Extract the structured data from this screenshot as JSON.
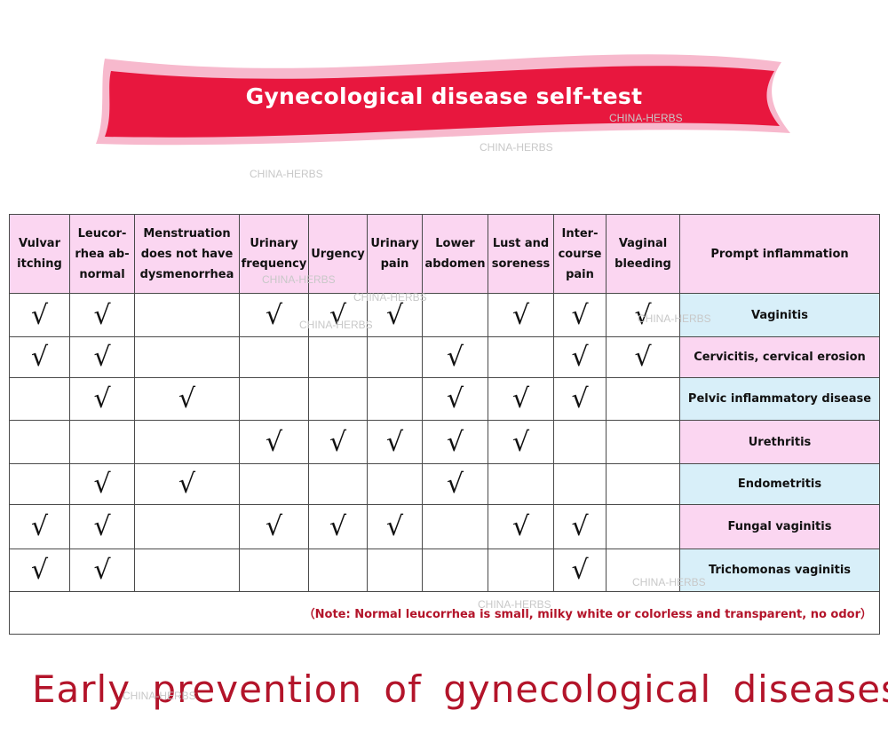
{
  "banner": {
    "title": "Gynecological disease self-test",
    "color": "#e8173e"
  },
  "watermark": "CHINA-HERBS",
  "check_mark": "√",
  "table": {
    "headers": [
      "Vulvar itching",
      "Leucor-rhea ab-normal",
      "Menstruation does not have dysmenorrhea",
      "Urinary frequency",
      "Urgency",
      "Urinary pain",
      "Lower abdomen",
      "Lust and soreness",
      "Inter-course pain",
      "Vaginal bleeding",
      "Prompt inflammation"
    ],
    "rows": [
      {
        "disease": "Vaginitis",
        "checks": [
          1,
          1,
          0,
          1,
          1,
          1,
          0,
          1,
          1,
          1
        ],
        "color": "blue"
      },
      {
        "disease": "Cervicitis, cervical erosion",
        "checks": [
          1,
          1,
          0,
          0,
          0,
          0,
          1,
          0,
          1,
          1
        ],
        "color": "pink"
      },
      {
        "disease": "Pelvic inflammatory disease",
        "checks": [
          0,
          1,
          1,
          0,
          0,
          0,
          1,
          1,
          1,
          0
        ],
        "color": "blue"
      },
      {
        "disease": "Urethritis",
        "checks": [
          0,
          0,
          0,
          1,
          1,
          1,
          1,
          1,
          0,
          0
        ],
        "color": "pink"
      },
      {
        "disease": "Endometritis",
        "checks": [
          0,
          1,
          1,
          0,
          0,
          0,
          1,
          0,
          0,
          0
        ],
        "color": "blue"
      },
      {
        "disease": "Fungal vaginitis",
        "checks": [
          1,
          1,
          0,
          1,
          1,
          1,
          0,
          1,
          1,
          0
        ],
        "color": "pink"
      },
      {
        "disease": "Trichomonas vaginitis",
        "checks": [
          1,
          1,
          0,
          0,
          0,
          0,
          0,
          0,
          1,
          0
        ],
        "color": "blue"
      }
    ],
    "note": "（Note: Normal leucorrhea is small, milky white or colorless and transparent, no odor）"
  },
  "slogan": "Early prevention of gynecological diseases!"
}
